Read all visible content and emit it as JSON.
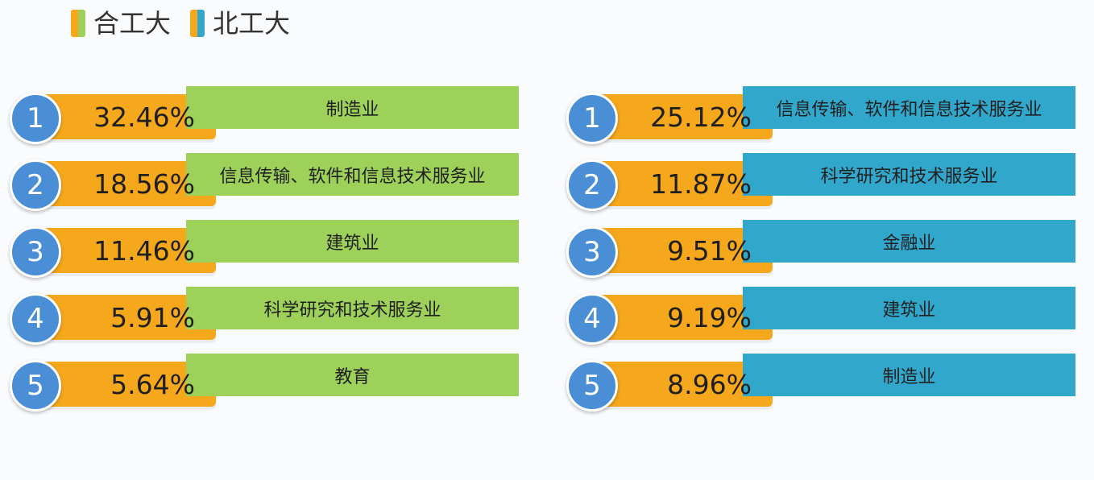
{
  "colors": {
    "hfut_accent": "#f5a81c",
    "hfut_label_box": "#9ed15a",
    "bjut_accent": "#f5a81c",
    "bjut_label_box": "#31a7cc",
    "rank_circle": "#4a8fd6"
  },
  "legend": {
    "items": [
      {
        "label": "合工大",
        "swatch_colors": [
          "#f5a81c",
          "#9ed15a"
        ]
      },
      {
        "label": "北工大",
        "swatch_colors": [
          "#f5a81c",
          "#31a7cc"
        ]
      }
    ]
  },
  "chart_data": [
    {
      "type": "bar",
      "series_name": "合工大",
      "ranks": [
        "1",
        "2",
        "3",
        "4",
        "5"
      ],
      "categories": [
        "制造业",
        "信息传输、软件和信息技术服务业",
        "建筑业",
        "科学研究和技术服务业",
        "教育"
      ],
      "values": [
        32.46,
        18.56,
        11.46,
        5.91,
        5.64
      ],
      "value_labels": [
        "32.46%",
        "18.56%",
        "11.46%",
        "5.91%",
        "5.64%"
      ]
    },
    {
      "type": "bar",
      "series_name": "北工大",
      "ranks": [
        "1",
        "2",
        "3",
        "4",
        "5"
      ],
      "categories": [
        "信息传输、软件和信息技术服务业",
        "科学研究和技术服务业",
        "金融业",
        "建筑业",
        "制造业"
      ],
      "values": [
        25.12,
        11.87,
        9.51,
        9.19,
        8.96
      ],
      "value_labels": [
        "25.12%",
        "11.87%",
        "9.51%",
        "9.19%",
        "8.96%"
      ]
    }
  ]
}
